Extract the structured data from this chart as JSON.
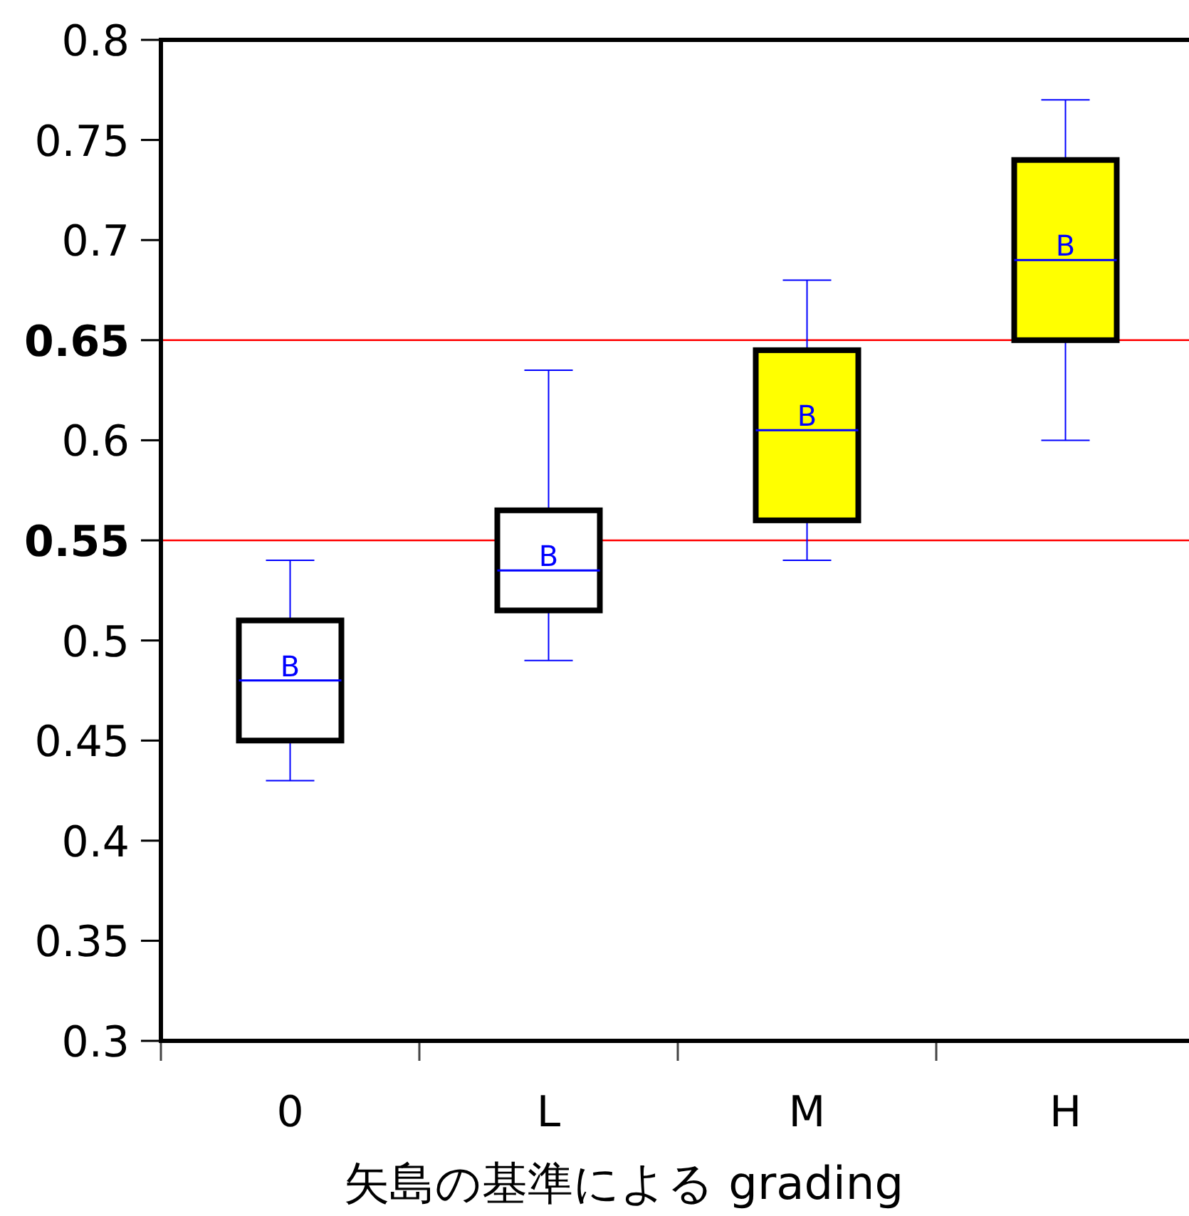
{
  "chart_data": {
    "type": "box",
    "xlabel": "矢島の基準による grading",
    "categories": [
      "0",
      "L",
      "M",
      "H"
    ],
    "boxes": [
      {
        "low": 0.43,
        "q1": 0.45,
        "median": 0.48,
        "q3": 0.51,
        "high": 0.54
      },
      {
        "low": 0.49,
        "q1": 0.515,
        "median": 0.535,
        "q3": 0.565,
        "high": 0.635
      },
      {
        "low": 0.54,
        "q1": 0.56,
        "median": 0.605,
        "q3": 0.645,
        "high": 0.68
      },
      {
        "low": 0.6,
        "q1": 0.65,
        "median": 0.69,
        "q3": 0.74,
        "high": 0.77
      }
    ],
    "color": "#0000ff",
    "colors": [
      "#ffffff",
      "#ffffff",
      "#ffff00",
      "#ffff00"
    ],
    "ylim": [
      0.3,
      0.8
    ],
    "yticks": [
      0.3,
      0.35,
      0.4,
      0.45,
      0.5,
      0.55,
      0.6,
      0.65,
      0.7,
      0.75,
      0.8
    ],
    "ref_lines": [
      {
        "axis": "y",
        "value": 0.65,
        "color": "#ff0000"
      },
      {
        "axis": "y",
        "value": 0.55,
        "color": "#ff0000"
      }
    ],
    "annotations": [
      {
        "text": "B",
        "x": "0",
        "y": 0.48
      },
      {
        "text": "B",
        "x": "L",
        "y": 0.535
      },
      {
        "text": "B",
        "x": "M",
        "y": 0.605
      },
      {
        "text": "B",
        "x": "H",
        "y": 0.69
      }
    ],
    "grid": false
  }
}
